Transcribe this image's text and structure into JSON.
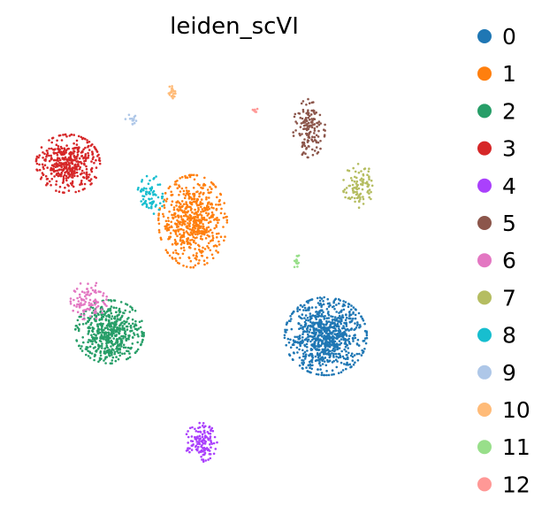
{
  "chart_data": {
    "type": "scatter",
    "title": "leiden_scVI",
    "xlabel": "",
    "ylabel": "",
    "grid": false,
    "axes_visible": false,
    "legend_placement": "right",
    "categories": [
      "0",
      "1",
      "2",
      "3",
      "4",
      "5",
      "6",
      "7",
      "8",
      "9",
      "10",
      "11",
      "12"
    ],
    "colors": [
      "#1f77b4",
      "#ff7f0e",
      "#279e68",
      "#d62728",
      "#aa40fc",
      "#8c564b",
      "#e377c2",
      "#b5bd61",
      "#17becf",
      "#aec7e8",
      "#ffbb78",
      "#98df8a",
      "#ff9896"
    ],
    "clusters": [
      {
        "label": "0",
        "center": [
          0.72,
          0.36
        ],
        "spread": [
          0.09,
          0.08
        ],
        "relative_size": 3400
      },
      {
        "label": "1",
        "center": [
          0.4,
          0.62
        ],
        "spread": [
          0.075,
          0.095
        ],
        "relative_size": 2400
      },
      {
        "label": "2",
        "center": [
          0.2,
          0.37
        ],
        "spread": [
          0.075,
          0.065
        ],
        "relative_size": 2200
      },
      {
        "label": "3",
        "center": [
          0.1,
          0.75
        ],
        "spread": [
          0.07,
          0.06
        ],
        "relative_size": 1700
      },
      {
        "label": "4",
        "center": [
          0.42,
          0.12
        ],
        "spread": [
          0.035,
          0.04
        ],
        "relative_size": 500
      },
      {
        "label": "5",
        "center": [
          0.68,
          0.83
        ],
        "spread": [
          0.035,
          0.06
        ],
        "relative_size": 600
      },
      {
        "label": "6",
        "center": [
          0.15,
          0.44
        ],
        "spread": [
          0.04,
          0.04
        ],
        "relative_size": 400
      },
      {
        "label": "7",
        "center": [
          0.8,
          0.7
        ],
        "spread": [
          0.035,
          0.045
        ],
        "relative_size": 400
      },
      {
        "label": "8",
        "center": [
          0.3,
          0.68
        ],
        "spread": [
          0.03,
          0.04
        ],
        "relative_size": 300
      },
      {
        "label": "9",
        "center": [
          0.26,
          0.85
        ],
        "spread": [
          0.02,
          0.012
        ],
        "relative_size": 60
      },
      {
        "label": "10",
        "center": [
          0.35,
          0.91
        ],
        "spread": [
          0.012,
          0.015
        ],
        "relative_size": 80
      },
      {
        "label": "11",
        "center": [
          0.65,
          0.53
        ],
        "spread": [
          0.006,
          0.02
        ],
        "relative_size": 60
      },
      {
        "label": "12",
        "center": [
          0.55,
          0.87
        ],
        "spread": [
          0.01,
          0.004
        ],
        "relative_size": 30
      }
    ]
  }
}
